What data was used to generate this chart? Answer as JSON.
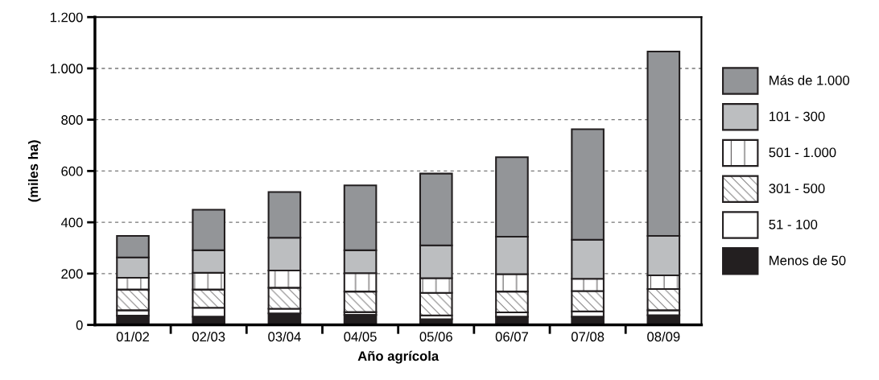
{
  "chart_data": {
    "type": "bar",
    "stacked": true,
    "xlabel": "Año agrícola",
    "ylabel": "(miles ha)",
    "categories": [
      "01/02",
      "02/03",
      "03/04",
      "04/05",
      "05/06",
      "06/07",
      "07/08",
      "08/09"
    ],
    "ylim": [
      0,
      1200
    ],
    "yticks": [
      0,
      200,
      400,
      600,
      800,
      {
        "value": 1000,
        "label": "1.000"
      },
      {
        "value": 1200,
        "label": "1.200"
      }
    ],
    "grid": "y",
    "legend": "right",
    "series": [
      {
        "name": "Menos de 50",
        "color": "#231f20",
        "values": [
          36,
          32,
          45,
          39,
          22,
          32,
          32,
          38
        ]
      },
      {
        "name": "51 - 100",
        "color": "#ffffff",
        "values": [
          21,
          35,
          18,
          11,
          15,
          17,
          21,
          19
        ]
      },
      {
        "name": "301 - 500",
        "color": "#ffffff",
        "values": [
          81,
          71,
          82,
          80,
          88,
          81,
          79,
          83
        ]
      },
      {
        "name": "501 - 1.000",
        "color": "#ffffff",
        "values": [
          46,
          65,
          67,
          72,
          57,
          68,
          48,
          53
        ]
      },
      {
        "name": "101 - 300",
        "color": "#bcbec0",
        "values": [
          79,
          88,
          128,
          89,
          128,
          146,
          152,
          154
        ]
      },
      {
        "name": "Más de 1.000",
        "color": "#939598",
        "values": [
          84,
          158,
          178,
          253,
          280,
          310,
          431,
          719
        ]
      }
    ]
  }
}
